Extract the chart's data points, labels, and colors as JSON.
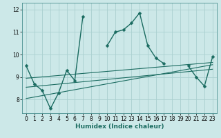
{
  "title": "",
  "xlabel": "Humidex (Indice chaleur)",
  "background_color": "#cce8e8",
  "grid_color": "#aad0d0",
  "line_color": "#1a6b60",
  "xlim": [
    -0.5,
    23.5
  ],
  "ylim": [
    7.4,
    12.3
  ],
  "xticks": [
    0,
    1,
    2,
    3,
    4,
    5,
    6,
    7,
    8,
    9,
    10,
    11,
    12,
    13,
    14,
    15,
    16,
    17,
    18,
    19,
    20,
    21,
    22,
    23
  ],
  "yticks": [
    8,
    9,
    10,
    11,
    12
  ],
  "main_series": {
    "x": [
      0,
      1,
      2,
      3,
      4,
      5,
      6,
      7,
      10,
      11,
      12,
      13,
      14,
      15,
      16,
      17,
      20,
      21,
      22,
      23
    ],
    "y": [
      9.5,
      8.7,
      8.4,
      7.6,
      8.3,
      9.3,
      8.85,
      11.7,
      10.4,
      11.0,
      11.1,
      11.4,
      11.85,
      10.4,
      9.85,
      9.6,
      9.5,
      9.0,
      8.6,
      9.9
    ],
    "segments": [
      {
        "x": [
          0,
          1,
          2,
          3,
          4,
          5,
          6,
          7
        ],
        "y": [
          9.5,
          8.7,
          8.4,
          7.6,
          8.3,
          9.3,
          8.85,
          11.7
        ]
      },
      {
        "x": [
          10,
          11,
          12,
          13,
          14,
          15,
          16,
          17
        ],
        "y": [
          10.4,
          11.0,
          11.1,
          11.4,
          11.85,
          10.4,
          9.85,
          9.6
        ]
      },
      {
        "x": [
          20,
          21,
          22,
          23
        ],
        "y": [
          9.5,
          9.0,
          8.6,
          9.9
        ]
      }
    ]
  },
  "trend_lines": [
    {
      "x0": 0,
      "x1": 23,
      "y0": 8.95,
      "y1": 9.65
    },
    {
      "x0": 0,
      "x1": 23,
      "y0": 8.55,
      "y1": 9.35
    },
    {
      "x0": 0,
      "x1": 23,
      "y0": 8.05,
      "y1": 9.55
    }
  ]
}
